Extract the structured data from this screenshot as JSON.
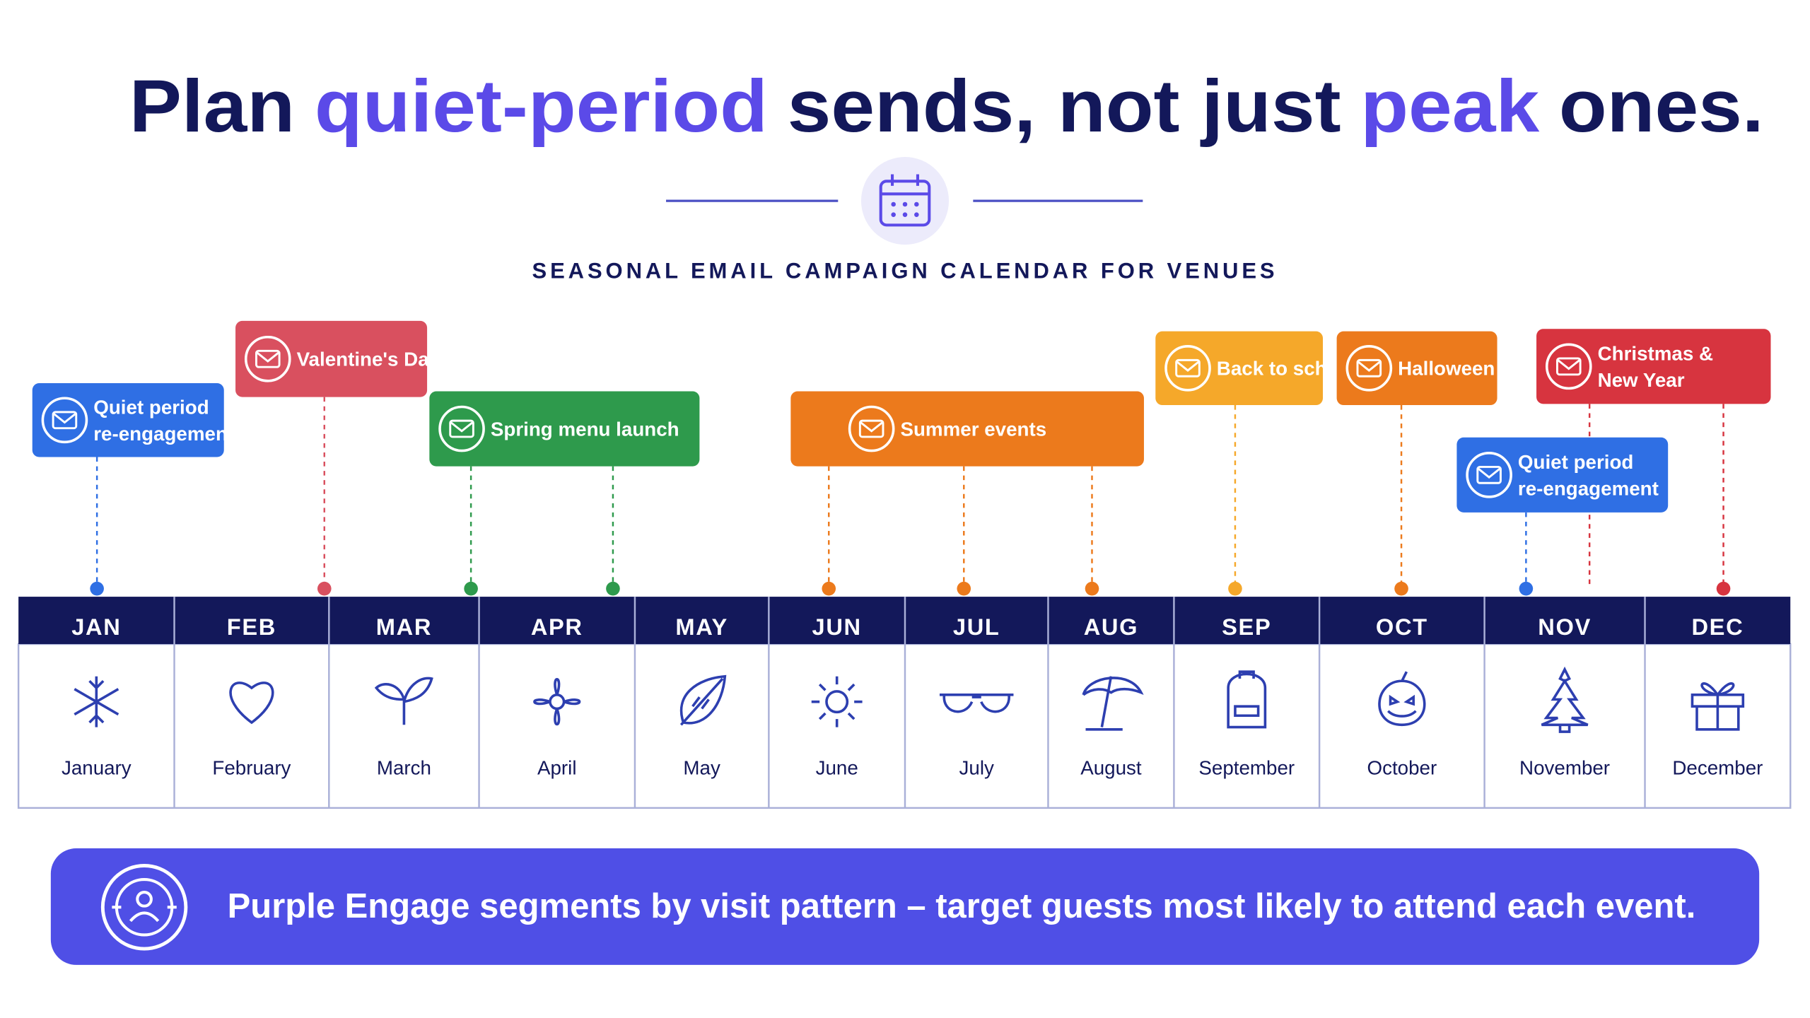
{
  "header": {
    "title": [
      "Plan",
      "quiet-period",
      "sends, not just",
      "peak",
      "ones."
    ],
    "title_color": "#13185a",
    "highlight_color": "#5b4ae8",
    "subtitle": "SEASONAL EMAIL CAMPAIGN CALENDAR FOR VENUES"
  },
  "events": [
    {
      "lines": [
        "Quiet period",
        "re-engagement"
      ],
      "color": "#2f6fe4"
    },
    {
      "lines": [
        "Valentine's Day"
      ],
      "color": "#d9505f"
    },
    {
      "lines": [
        "Spring menu launch"
      ],
      "color": "#2e9a4c"
    },
    {
      "lines": [
        "Summer events"
      ],
      "color": "#ec7a1c"
    },
    {
      "lines": [
        "Back to school"
      ],
      "color": "#f5a82a"
    },
    {
      "lines": [
        "Halloween"
      ],
      "color": "#ec7a1c"
    },
    {
      "lines": [
        "Christmas &",
        "New Year"
      ],
      "color": "#d7343f"
    },
    {
      "lines": [
        "Quiet period",
        "re-engagement"
      ],
      "color": "#2f6fe4"
    }
  ],
  "months": [
    {
      "abbr": "JAN",
      "name": "January"
    },
    {
      "abbr": "FEB",
      "name": "February"
    },
    {
      "abbr": "MAR",
      "name": "March"
    },
    {
      "abbr": "APR",
      "name": "April"
    },
    {
      "abbr": "MAY",
      "name": "May"
    },
    {
      "abbr": "JUN",
      "name": "June"
    },
    {
      "abbr": "JUL",
      "name": "July"
    },
    {
      "abbr": "AUG",
      "name": "August"
    },
    {
      "abbr": "SEP",
      "name": "September"
    },
    {
      "abbr": "OCT",
      "name": "October"
    },
    {
      "abbr": "NOV",
      "name": "November"
    },
    {
      "abbr": "DEC",
      "name": "December"
    }
  ],
  "footer": {
    "text": "Purple Engage segments by visit pattern – target guests most likely to attend each event.",
    "color": "#4f4fe6"
  }
}
